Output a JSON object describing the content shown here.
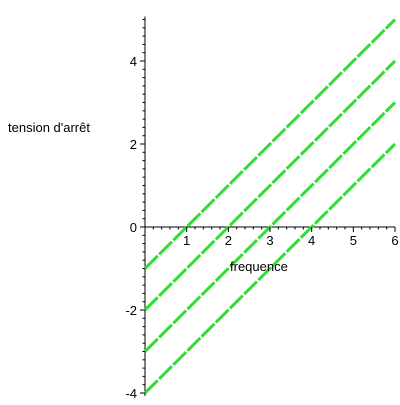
{
  "chart_data": {
    "type": "line",
    "xlabel": "frequence",
    "ylabel": "tension d'arrêt",
    "xlim": [
      0,
      6
    ],
    "ylim": [
      -4,
      5
    ],
    "x_ticks": [
      "1",
      "2",
      "3",
      "4",
      "5",
      "6"
    ],
    "y_ticks": [
      "-4",
      "-2",
      "0",
      "2",
      "4"
    ],
    "grid": false,
    "line_color": "#33dd33",
    "series": [
      {
        "x": [
          0,
          6
        ],
        "y": [
          -1,
          5
        ]
      },
      {
        "x": [
          0,
          6
        ],
        "y": [
          -2,
          4
        ]
      },
      {
        "x": [
          0,
          6
        ],
        "y": [
          -3,
          3
        ]
      },
      {
        "x": [
          0,
          6
        ],
        "y": [
          -4,
          2
        ]
      }
    ]
  }
}
